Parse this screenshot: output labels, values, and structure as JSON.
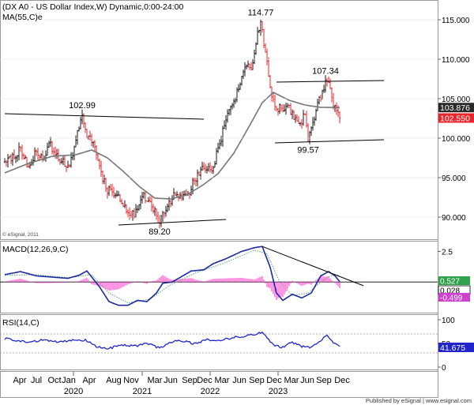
{
  "header": {
    "title": "(DX A0 - US Dollar Index,W) Dynamic,0:00-24:00",
    "ma_label": "MA(55,C)e",
    "copyright": "© eSignal, 2011",
    "macd_label": "MACD(12,26,9,C)",
    "rsi_label": "RSI(14,C)",
    "footer": "Published by eSignal | www.esignal.com"
  },
  "colors": {
    "up_bar": "#1a1a1a",
    "down_bar": "#e8262b",
    "ma_line": "#777777",
    "macd_line": "#1c2a9e",
    "signal_line": "#5aa67a",
    "histogram": "#ff4fd0",
    "rsi_line": "#1f25c9",
    "trendline": "#000000",
    "price_badge_dark": "#2a2a2a",
    "price_badge_red": "#e8262b",
    "macd_badge": "#30a24a",
    "hist_badge": "#d040d0",
    "rsi_badge": "#1f25c9"
  },
  "chart_data": [
    {
      "type": "candlestick",
      "title": "(DX A0 - US Dollar Index,W) Dynamic,0:00-24:00",
      "x_axis": {
        "month_labels": [
          "Apr",
          "Jul",
          "Oct",
          "Jan",
          "Apr",
          "Aug",
          "Nov",
          "Mar",
          "Jun",
          "Sep",
          "Dec",
          "Mar",
          "Jun",
          "Sep",
          "Dec",
          "Mar",
          "Jun",
          "Sep",
          "Dec"
        ],
        "year_labels": [
          "2020",
          "2021",
          "2022",
          "2023"
        ]
      },
      "y_axis": {
        "ticks": [
          "115.000",
          "110.000",
          "105.000",
          "100.000",
          "95.000",
          "90.000"
        ],
        "tick_values": [
          115,
          110,
          105,
          100,
          95,
          90
        ],
        "range": [
          87.5,
          117.5
        ]
      },
      "keypoints": [
        {
          "week": 0,
          "value": 97
        },
        {
          "week": 6,
          "value": 97.5
        },
        {
          "week": 10,
          "value": 98.8
        },
        {
          "week": 15,
          "value": 96.4
        },
        {
          "week": 20,
          "value": 98.3
        },
        {
          "week": 24,
          "value": 97.3
        },
        {
          "week": 28,
          "value": 99.4
        },
        {
          "week": 32,
          "value": 97.9
        },
        {
          "week": 36,
          "value": 97.0
        },
        {
          "week": 41,
          "value": 96.5
        },
        {
          "week": 44,
          "value": 98.9
        },
        {
          "week": 47,
          "value": 101.2
        },
        {
          "week": 49,
          "value": 102.99
        },
        {
          "week": 52,
          "value": 100.0
        },
        {
          "week": 56,
          "value": 99.5
        },
        {
          "week": 60,
          "value": 96.5
        },
        {
          "week": 64,
          "value": 93.6
        },
        {
          "week": 68,
          "value": 93.2
        },
        {
          "week": 72,
          "value": 92.8
        },
        {
          "week": 76,
          "value": 91.5
        },
        {
          "week": 80,
          "value": 90.0
        },
        {
          "week": 84,
          "value": 91.0
        },
        {
          "week": 88,
          "value": 93.0
        },
        {
          "week": 90,
          "value": 92.0
        },
        {
          "week": 93,
          "value": 91.3
        },
        {
          "week": 98,
          "value": 89.2
        },
        {
          "week": 101,
          "value": 90.5
        },
        {
          "week": 104,
          "value": 92.0
        },
        {
          "week": 108,
          "value": 92.8
        },
        {
          "week": 112,
          "value": 92.4
        },
        {
          "week": 116,
          "value": 93.0
        },
        {
          "week": 120,
          "value": 94.6
        },
        {
          "week": 124,
          "value": 96.0
        },
        {
          "week": 128,
          "value": 96.0
        },
        {
          "week": 132,
          "value": 96.3
        },
        {
          "week": 136,
          "value": 99.3
        },
        {
          "week": 140,
          "value": 102.3
        },
        {
          "week": 144,
          "value": 104.2
        },
        {
          "week": 148,
          "value": 106.2
        },
        {
          "week": 152,
          "value": 109.0
        },
        {
          "week": 156,
          "value": 108.7
        },
        {
          "week": 160,
          "value": 113.5
        },
        {
          "week": 162,
          "value": 114.77
        },
        {
          "week": 165,
          "value": 110.9
        },
        {
          "week": 168,
          "value": 106.5
        },
        {
          "week": 171,
          "value": 104.0
        },
        {
          "week": 175,
          "value": 103.8
        },
        {
          "week": 179,
          "value": 104.2
        },
        {
          "week": 183,
          "value": 102.4
        },
        {
          "week": 187,
          "value": 101.9
        },
        {
          "week": 190,
          "value": 103.0
        },
        {
          "week": 192,
          "value": 99.57
        },
        {
          "week": 195,
          "value": 102.0
        },
        {
          "week": 198,
          "value": 104.5
        },
        {
          "week": 201,
          "value": 106.0
        },
        {
          "week": 203,
          "value": 107.34
        },
        {
          "week": 206,
          "value": 106.3
        },
        {
          "week": 208,
          "value": 104.0
        },
        {
          "week": 210,
          "value": 103.5
        },
        {
          "week": 212,
          "value": 102.55
        }
      ],
      "moving_average": [
        {
          "week": 0,
          "value": 95.6
        },
        {
          "week": 15,
          "value": 96.8
        },
        {
          "week": 30,
          "value": 97.7
        },
        {
          "week": 45,
          "value": 97.9
        },
        {
          "week": 55,
          "value": 98.5
        },
        {
          "week": 65,
          "value": 97.5
        },
        {
          "week": 75,
          "value": 95.8
        },
        {
          "week": 85,
          "value": 93.9
        },
        {
          "week": 95,
          "value": 92.4
        },
        {
          "week": 105,
          "value": 92.3
        },
        {
          "week": 115,
          "value": 92.8
        },
        {
          "week": 125,
          "value": 94.0
        },
        {
          "week": 135,
          "value": 95.5
        },
        {
          "week": 145,
          "value": 98.1
        },
        {
          "week": 155,
          "value": 101.6
        },
        {
          "week": 163,
          "value": 104.5
        },
        {
          "week": 170,
          "value": 105.8
        },
        {
          "week": 180,
          "value": 104.8
        },
        {
          "week": 190,
          "value": 104.2
        },
        {
          "week": 200,
          "value": 103.9
        },
        {
          "week": 212,
          "value": 103.876
        }
      ],
      "annotations": [
        {
          "text": "114.77",
          "week": 162,
          "value": 114.77,
          "position": "above"
        },
        {
          "text": "102.99",
          "week": 49,
          "value": 102.99,
          "position": "above"
        },
        {
          "text": "107.34",
          "week": 203,
          "value": 107.34,
          "position": "above"
        },
        {
          "text": "99.57",
          "week": 192,
          "value": 99.57,
          "position": "below"
        },
        {
          "text": "89.20",
          "week": 98,
          "value": 89.2,
          "position": "below"
        }
      ],
      "trendlines": [
        {
          "from": {
            "week": 0,
            "value": 103.1
          },
          "to": {
            "week": 126,
            "value": 102.4
          }
        },
        {
          "from": {
            "week": 72,
            "value": 89.0
          },
          "to": {
            "week": 140,
            "value": 89.7
          }
        },
        {
          "from": {
            "week": 172,
            "value": 107.1
          },
          "to": {
            "week": 240,
            "value": 107.3
          }
        },
        {
          "from": {
            "week": 171,
            "value": 99.4
          },
          "to": {
            "week": 240,
            "value": 99.8
          }
        }
      ],
      "last_values": [
        {
          "text": "103.876",
          "value": 103.876,
          "style": "dark"
        },
        {
          "text": "102.550",
          "value": 102.55,
          "style": "red"
        }
      ]
    },
    {
      "type": "line",
      "name": "MACD(12,26,9,C)",
      "y_axis": {
        "ticks": [
          "2.5"
        ],
        "tick_values": [
          2.5
        ],
        "range": [
          -2.5,
          3.3
        ]
      },
      "zero_line": 0,
      "macd": [
        {
          "week": 0,
          "value": 0.6
        },
        {
          "week": 10,
          "value": 0.85
        },
        {
          "week": 20,
          "value": 0.5
        },
        {
          "week": 30,
          "value": 0.4
        },
        {
          "week": 40,
          "value": 0.3
        },
        {
          "week": 47,
          "value": 0.55
        },
        {
          "week": 52,
          "value": 0.9
        },
        {
          "week": 60,
          "value": -0.4
        },
        {
          "week": 66,
          "value": -1.6
        },
        {
          "week": 72,
          "value": -1.9
        },
        {
          "week": 78,
          "value": -1.9
        },
        {
          "week": 84,
          "value": -1.5
        },
        {
          "week": 90,
          "value": -1.6
        },
        {
          "week": 96,
          "value": -0.9
        },
        {
          "week": 100,
          "value": -0.1
        },
        {
          "week": 106,
          "value": 0.0
        },
        {
          "week": 112,
          "value": 0.45
        },
        {
          "week": 118,
          "value": 0.9
        },
        {
          "week": 126,
          "value": 1.0
        },
        {
          "week": 132,
          "value": 1.5
        },
        {
          "week": 140,
          "value": 1.9
        },
        {
          "week": 150,
          "value": 2.5
        },
        {
          "week": 158,
          "value": 2.8
        },
        {
          "week": 163,
          "value": 2.9
        },
        {
          "week": 168,
          "value": 1.2
        },
        {
          "week": 172,
          "value": -0.9
        },
        {
          "week": 176,
          "value": -1.5
        },
        {
          "week": 182,
          "value": -1.0
        },
        {
          "week": 188,
          "value": -1.3
        },
        {
          "week": 194,
          "value": -0.9
        },
        {
          "week": 200,
          "value": 0.5
        },
        {
          "week": 205,
          "value": 0.85
        },
        {
          "week": 209,
          "value": 0.5
        },
        {
          "week": 212,
          "value": 0.028
        }
      ],
      "signal": [
        {
          "week": 0,
          "value": 0.55
        },
        {
          "week": 20,
          "value": 0.6
        },
        {
          "week": 40,
          "value": 0.35
        },
        {
          "week": 55,
          "value": 0.6
        },
        {
          "week": 66,
          "value": -0.9
        },
        {
          "week": 78,
          "value": -1.7
        },
        {
          "week": 92,
          "value": -1.4
        },
        {
          "week": 104,
          "value": -0.3
        },
        {
          "week": 120,
          "value": 0.7
        },
        {
          "week": 140,
          "value": 1.6
        },
        {
          "week": 158,
          "value": 2.6
        },
        {
          "week": 166,
          "value": 2.3
        },
        {
          "week": 174,
          "value": 0.0
        },
        {
          "week": 182,
          "value": -1.1
        },
        {
          "week": 192,
          "value": -0.9
        },
        {
          "week": 202,
          "value": 0.2
        },
        {
          "week": 208,
          "value": 0.6
        },
        {
          "week": 212,
          "value": 0.527
        }
      ],
      "trendline": {
        "from": {
          "week": 163,
          "value": 2.9
        },
        "to": {
          "week": 227,
          "value": -0.3
        }
      },
      "last_values": [
        {
          "text": "0.527",
          "style": "green"
        },
        {
          "text": "0.028",
          "style": "outline"
        },
        {
          "text": "-0.499",
          "style": "magenta"
        }
      ]
    },
    {
      "type": "line",
      "name": "RSI(14,C)",
      "y_axis": {
        "ticks": [
          "100",
          "50",
          "0"
        ],
        "tick_values": [
          100,
          50,
          0
        ],
        "range": [
          -5,
          110
        ]
      },
      "guide_lines": [
        70,
        30
      ],
      "rsi": [
        {
          "week": 0,
          "value": 60
        },
        {
          "week": 8,
          "value": 56
        },
        {
          "week": 16,
          "value": 52
        },
        {
          "week": 24,
          "value": 58
        },
        {
          "week": 32,
          "value": 54
        },
        {
          "week": 40,
          "value": 56
        },
        {
          "week": 46,
          "value": 58
        },
        {
          "week": 52,
          "value": 56
        },
        {
          "week": 58,
          "value": 42
        },
        {
          "week": 66,
          "value": 40
        },
        {
          "week": 74,
          "value": 46
        },
        {
          "week": 82,
          "value": 44
        },
        {
          "week": 90,
          "value": 50
        },
        {
          "week": 98,
          "value": 40
        },
        {
          "week": 104,
          "value": 52
        },
        {
          "week": 112,
          "value": 56
        },
        {
          "week": 120,
          "value": 50
        },
        {
          "week": 128,
          "value": 58
        },
        {
          "week": 136,
          "value": 56
        },
        {
          "week": 144,
          "value": 62
        },
        {
          "week": 152,
          "value": 66
        },
        {
          "week": 158,
          "value": 68
        },
        {
          "week": 163,
          "value": 74
        },
        {
          "week": 167,
          "value": 58
        },
        {
          "week": 171,
          "value": 46
        },
        {
          "week": 176,
          "value": 42
        },
        {
          "week": 182,
          "value": 52
        },
        {
          "week": 188,
          "value": 44
        },
        {
          "week": 194,
          "value": 42
        },
        {
          "week": 200,
          "value": 56
        },
        {
          "week": 204,
          "value": 66
        },
        {
          "week": 208,
          "value": 52
        },
        {
          "week": 212,
          "value": 41.675
        }
      ],
      "last_values": [
        {
          "text": "41.675",
          "style": "blue"
        }
      ]
    }
  ]
}
